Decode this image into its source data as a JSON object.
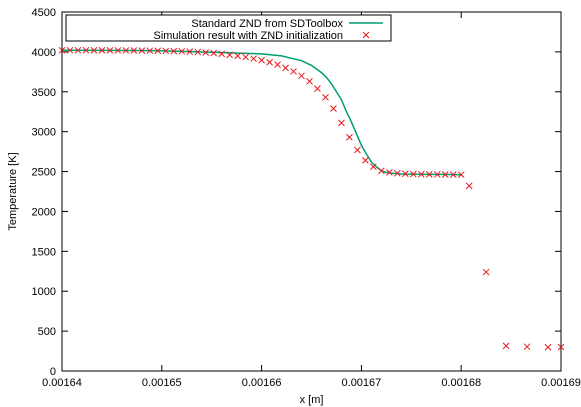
{
  "chart_data": {
    "type": "line",
    "title": "",
    "xlabel": "x [m]",
    "ylabel": "Temperature [K]",
    "xlim": [
      0.00164,
      0.00169
    ],
    "ylim": [
      0,
      4500
    ],
    "x_ticks": [
      "0.00164",
      "0.00165",
      "0.00166",
      "0.00167",
      "0.00168",
      "0.00169"
    ],
    "x_tick_values": [
      0.00164,
      0.00165,
      0.00166,
      0.00167,
      0.00168,
      0.00169
    ],
    "y_ticks": [
      "0",
      "500",
      "1000",
      "1500",
      "2000",
      "2500",
      "3000",
      "3500",
      "4000",
      "4500"
    ],
    "y_tick_values": [
      0,
      500,
      1000,
      1500,
      2000,
      2500,
      3000,
      3500,
      4000,
      4500
    ],
    "grid": false,
    "legend_position": "top-right",
    "series": [
      {
        "name": "Standard ZND from SDToolbox",
        "style": "line",
        "color": "#009e73",
        "x": [
          0.00164,
          0.00165,
          0.00166,
          0.001662,
          0.001664,
          0.001665,
          0.001666,
          0.0016665,
          0.001667,
          0.0016675,
          0.001668,
          0.0016685,
          0.001669,
          0.00167,
          0.0016705,
          0.001671,
          0.0016715,
          0.001672,
          0.0016725,
          0.001673,
          0.001674,
          0.001675,
          0.001676,
          0.001677,
          0.001678,
          0.001679,
          0.00168
        ],
        "values": [
          4020,
          4015,
          3975,
          3950,
          3890,
          3830,
          3740,
          3680,
          3600,
          3500,
          3400,
          3250,
          3120,
          2830,
          2720,
          2620,
          2560,
          2510,
          2490,
          2480,
          2470,
          2468,
          2466,
          2465,
          2464,
          2463,
          2460
        ]
      },
      {
        "name": "Simulation result with ZND initialization",
        "style": "cross",
        "color": "#e41a1c",
        "x": [
          0.00164,
          0.0016408,
          0.0016416,
          0.0016424,
          0.0016432,
          0.001644,
          0.0016448,
          0.0016456,
          0.0016464,
          0.0016472,
          0.001648,
          0.0016488,
          0.0016496,
          0.0016504,
          0.0016512,
          0.001652,
          0.0016528,
          0.0016536,
          0.0016544,
          0.0016552,
          0.001656,
          0.0016568,
          0.0016576,
          0.0016584,
          0.0016592,
          0.00166,
          0.0016608,
          0.0016616,
          0.0016624,
          0.0016632,
          0.001664,
          0.0016648,
          0.0016656,
          0.0016664,
          0.0016672,
          0.001668,
          0.0016688,
          0.0016696,
          0.0016704,
          0.0016712,
          0.001672,
          0.0016728,
          0.0016736,
          0.0016744,
          0.0016752,
          0.001676,
          0.0016768,
          0.0016776,
          0.0016784,
          0.0016792,
          0.00168,
          0.0016808,
          0.0016825,
          0.0016845,
          0.0016866,
          0.0016887,
          0.00169
        ],
        "values": [
          4020,
          4020,
          4020,
          4020,
          4019,
          4019,
          4019,
          4018,
          4018,
          4017,
          4016,
          4015,
          4014,
          4012,
          4010,
          4007,
          4003,
          3998,
          3992,
          3985,
          3975,
          3963,
          3950,
          3935,
          3915,
          3895,
          3870,
          3840,
          3800,
          3755,
          3700,
          3630,
          3540,
          3430,
          3290,
          3110,
          2930,
          2770,
          2640,
          2560,
          2510,
          2490,
          2478,
          2472,
          2468,
          2466,
          2465,
          2464,
          2463,
          2462,
          2461,
          2320,
          1240,
          315,
          305,
          298,
          300
        ]
      }
    ]
  }
}
